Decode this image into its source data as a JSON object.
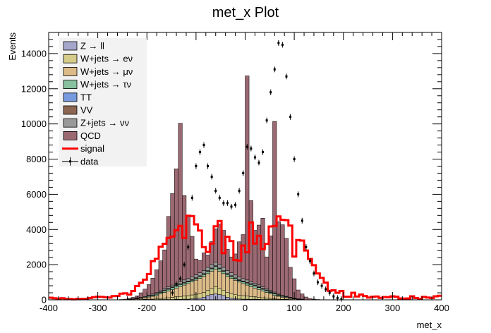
{
  "chart_data": {
    "type": "histogram",
    "title": "met_x Plot",
    "xlabel": "met_x",
    "ylabel": "Events",
    "xlim": [
      -400,
      400
    ],
    "ylim": [
      0,
      15200
    ],
    "x_ticks": [
      "-400",
      "-300",
      "-200",
      "-100",
      "0",
      "100",
      "200",
      "300",
      "400"
    ],
    "y_ticks": [
      "0",
      "2000",
      "4000",
      "6000",
      "8000",
      "10000",
      "12000",
      "14000"
    ],
    "legend": {
      "placement": "top-left",
      "entries": [
        {
          "label": "Z → ll",
          "color": "#a6a6cc",
          "style": "fill"
        },
        {
          "label": "W+jets → eν",
          "color": "#d4cc88",
          "style": "fill"
        },
        {
          "label": "W+jets → μν",
          "color": "#dcbb88",
          "style": "fill"
        },
        {
          "label": "W+jets → τν",
          "color": "#88c0a0",
          "style": "fill"
        },
        {
          "label": "TT",
          "color": "#7799dd",
          "style": "fill"
        },
        {
          "label": "VV",
          "color": "#8c6652",
          "style": "fill"
        },
        {
          "label": "Z+jets → νν",
          "color": "#999999",
          "style": "fill"
        },
        {
          "label": "QCD",
          "color": "#9b6972",
          "style": "fill"
        },
        {
          "label": "signal",
          "color": "#ff0000",
          "style": "line"
        },
        {
          "label": "data",
          "color": "#000000",
          "style": "marker"
        }
      ]
    },
    "bins": {
      "start": -400,
      "end": 400,
      "width": 8
    },
    "stack_order": [
      "Z → ll",
      "W+jets → eν",
      "W+jets → μν",
      "W+jets → τν",
      "TT",
      "VV",
      "Z+jets → νν",
      "QCD"
    ],
    "stack_colors": [
      "#a6a6cc",
      "#d4cc88",
      "#dcbb88",
      "#88c0a0",
      "#7799dd",
      "#8c6652",
      "#999999",
      "#9b6972"
    ],
    "series": [
      {
        "name": "Z → ll",
        "values": [
          0,
          0,
          0,
          0,
          0,
          0,
          0,
          0,
          0,
          0,
          0,
          0,
          0,
          0,
          0,
          0,
          0,
          0,
          0,
          0,
          0,
          0,
          0,
          0,
          10,
          10,
          10,
          10,
          20,
          20,
          20,
          20,
          30,
          30,
          40,
          40,
          60,
          80,
          100,
          150,
          250,
          300,
          350,
          300,
          250,
          150,
          100,
          70,
          50,
          40,
          40,
          30,
          30,
          30,
          20,
          20,
          20,
          20,
          10,
          10,
          10,
          10,
          0,
          0,
          0,
          0,
          0,
          0,
          0,
          0,
          0,
          0,
          0,
          0,
          0,
          0,
          0,
          0,
          0,
          0,
          0,
          0,
          0,
          0,
          0,
          0,
          0,
          0,
          0,
          0,
          0,
          0,
          0,
          0,
          0,
          0,
          0,
          0,
          0,
          0
        ]
      },
      {
        "name": "W+jets → eν",
        "values": [
          0,
          0,
          0,
          0,
          0,
          0,
          0,
          0,
          0,
          0,
          0,
          0,
          0,
          0,
          0,
          0,
          0,
          0,
          0,
          0,
          0,
          10,
          10,
          20,
          20,
          30,
          30,
          40,
          60,
          80,
          100,
          120,
          140,
          160,
          180,
          200,
          220,
          240,
          260,
          280,
          300,
          350,
          400,
          350,
          300,
          280,
          260,
          240,
          220,
          200,
          180,
          160,
          140,
          120,
          100,
          80,
          60,
          40,
          30,
          20,
          20,
          10,
          10,
          0,
          0,
          0,
          0,
          0,
          0,
          0,
          0,
          0,
          0,
          0,
          0,
          0,
          0,
          0,
          0,
          0,
          0,
          0,
          0,
          0,
          0,
          0,
          0,
          0,
          0,
          0,
          0,
          0,
          0,
          0,
          0,
          0,
          0,
          0,
          0,
          0
        ]
      },
      {
        "name": "W+jets → μν",
        "values": [
          0,
          0,
          0,
          0,
          0,
          0,
          0,
          0,
          0,
          0,
          0,
          0,
          0,
          0,
          0,
          0,
          0,
          0,
          0,
          10,
          20,
          30,
          40,
          60,
          80,
          120,
          160,
          200,
          260,
          320,
          380,
          440,
          500,
          560,
          620,
          680,
          740,
          800,
          860,
          900,
          940,
          980,
          1000,
          980,
          940,
          900,
          860,
          800,
          740,
          680,
          620,
          560,
          500,
          440,
          380,
          320,
          260,
          200,
          160,
          120,
          80,
          60,
          40,
          30,
          20,
          10,
          0,
          0,
          0,
          0,
          0,
          0,
          0,
          0,
          0,
          0,
          0,
          0,
          0,
          0,
          0,
          0,
          0,
          0,
          0,
          0,
          0,
          0,
          0,
          0,
          0,
          0,
          0,
          0,
          0,
          0,
          0,
          0,
          0,
          0
        ]
      },
      {
        "name": "W+jets → τν",
        "values": [
          0,
          0,
          0,
          0,
          0,
          0,
          0,
          0,
          0,
          0,
          0,
          0,
          0,
          0,
          0,
          0,
          0,
          0,
          0,
          0,
          10,
          10,
          20,
          30,
          40,
          50,
          60,
          70,
          80,
          90,
          100,
          110,
          120,
          120,
          110,
          100,
          90,
          90,
          100,
          110,
          120,
          130,
          140,
          130,
          120,
          110,
          100,
          90,
          90,
          100,
          110,
          120,
          120,
          110,
          100,
          90,
          80,
          70,
          60,
          50,
          40,
          30,
          20,
          10,
          10,
          0,
          0,
          0,
          0,
          0,
          0,
          0,
          0,
          0,
          0,
          0,
          0,
          0,
          0,
          0,
          0,
          0,
          0,
          0,
          0,
          0,
          0,
          0,
          0,
          0,
          0,
          0,
          0,
          0,
          0,
          0,
          0,
          0,
          0,
          0
        ]
      },
      {
        "name": "TT",
        "values": [
          0,
          0,
          0,
          0,
          0,
          0,
          0,
          0,
          0,
          0,
          0,
          0,
          0,
          0,
          0,
          0,
          0,
          0,
          0,
          0,
          0,
          0,
          0,
          0,
          0,
          0,
          0,
          0,
          0,
          10,
          10,
          10,
          10,
          10,
          10,
          10,
          10,
          10,
          10,
          10,
          10,
          10,
          10,
          10,
          10,
          10,
          10,
          10,
          10,
          10,
          10,
          10,
          10,
          10,
          10,
          10,
          10,
          10,
          10,
          0,
          0,
          0,
          0,
          0,
          0,
          0,
          0,
          0,
          0,
          0,
          0,
          0,
          0,
          0,
          0,
          0,
          0,
          0,
          0,
          0,
          0,
          0,
          0,
          0,
          0,
          0,
          0,
          0,
          0,
          0,
          0,
          0,
          0,
          0,
          0,
          0,
          0,
          0,
          0,
          0
        ]
      },
      {
        "name": "VV",
        "values": [
          0,
          0,
          0,
          0,
          0,
          0,
          0,
          0,
          0,
          0,
          0,
          0,
          0,
          0,
          0,
          0,
          0,
          0,
          0,
          0,
          0,
          0,
          0,
          10,
          10,
          20,
          20,
          30,
          30,
          40,
          40,
          40,
          40,
          40,
          40,
          40,
          40,
          40,
          40,
          40,
          40,
          40,
          40,
          40,
          40,
          40,
          40,
          40,
          40,
          40,
          40,
          40,
          40,
          40,
          40,
          40,
          40,
          40,
          30,
          30,
          20,
          20,
          10,
          10,
          0,
          0,
          0,
          0,
          0,
          0,
          0,
          0,
          0,
          0,
          0,
          0,
          0,
          0,
          0,
          0,
          0,
          0,
          0,
          0,
          0,
          0,
          0,
          0,
          0,
          0,
          0,
          0,
          0,
          0,
          0,
          0,
          0,
          0,
          0,
          0
        ]
      },
      {
        "name": "Z+jets → νν",
        "values": [
          0,
          0,
          0,
          0,
          0,
          0,
          0,
          0,
          0,
          0,
          0,
          0,
          0,
          0,
          0,
          0,
          0,
          0,
          0,
          0,
          10,
          10,
          20,
          20,
          30,
          40,
          50,
          60,
          70,
          80,
          90,
          100,
          110,
          120,
          130,
          140,
          150,
          160,
          170,
          180,
          190,
          200,
          200,
          200,
          190,
          180,
          170,
          160,
          150,
          140,
          130,
          120,
          110,
          100,
          90,
          80,
          70,
          60,
          50,
          40,
          30,
          20,
          20,
          10,
          10,
          0,
          0,
          0,
          0,
          0,
          0,
          0,
          0,
          0,
          0,
          0,
          0,
          0,
          0,
          0,
          0,
          0,
          0,
          0,
          0,
          0,
          0,
          0,
          0,
          0,
          0,
          0,
          0,
          0,
          0,
          0,
          0,
          0,
          0,
          0
        ]
      },
      {
        "name": "QCD",
        "values": [
          0,
          0,
          0,
          0,
          0,
          0,
          0,
          0,
          0,
          0,
          0,
          0,
          0,
          0,
          0,
          0,
          0,
          0,
          20,
          30,
          50,
          80,
          140,
          260,
          420,
          600,
          900,
          1300,
          1700,
          2200,
          4000,
          5200,
          6500,
          9000,
          4800,
          3600,
          2300,
          900,
          700,
          1000,
          700,
          1300,
          1900,
          2300,
          2100,
          1200,
          900,
          1200,
          2000,
          2500,
          11600,
          4600,
          3000,
          3400,
          3900,
          1800,
          3100,
          9700,
          4100,
          4000,
          3300,
          1700,
          1100,
          500,
          300,
          150,
          80,
          40,
          20,
          10,
          0,
          0,
          0,
          0,
          0,
          0,
          0,
          0,
          0,
          0,
          0,
          0,
          0,
          0,
          0,
          0,
          0,
          0,
          0,
          0,
          0,
          0,
          0,
          0,
          0,
          0,
          0,
          0,
          0,
          0
        ]
      },
      {
        "name": "signal",
        "values": [
          120,
          90,
          60,
          90,
          50,
          50,
          30,
          60,
          60,
          60,
          100,
          150,
          180,
          170,
          150,
          130,
          210,
          220,
          350,
          370,
          300,
          500,
          780,
          970,
          1150,
          1470,
          2200,
          2330,
          3020,
          3190,
          3520,
          3600,
          3960,
          4200,
          3520,
          4780,
          4760,
          4290,
          3940,
          3000,
          2720,
          3200,
          4180,
          4480,
          2650,
          3590,
          3340,
          2260,
          2230,
          3090,
          2700,
          4400,
          3200,
          3640,
          2890,
          3180,
          4170,
          4200,
          4740,
          4550,
          4530,
          4220,
          2460,
          3400,
          3370,
          2800,
          2320,
          1970,
          1500,
          1250,
          980,
          510,
          540,
          400,
          500,
          180,
          180,
          400,
          190,
          300,
          220,
          130,
          180,
          190,
          110,
          160,
          150,
          200,
          180,
          80,
          70,
          80,
          200,
          100,
          50,
          170,
          130,
          100,
          200,
          230
        ]
      },
      {
        "name": "data",
        "type": "points",
        "x": [
          -148,
          -140,
          -132,
          -124,
          -116,
          -108,
          -100,
          -92,
          -84,
          -76,
          -68,
          -60,
          -52,
          -44,
          -36,
          -28,
          -20,
          -12,
          -4,
          4,
          12,
          20,
          28,
          36,
          44,
          52,
          60,
          68,
          76,
          84,
          92,
          100,
          108,
          116,
          124,
          132,
          140,
          148,
          156,
          164,
          172,
          180,
          188,
          196
        ],
        "values": [
          400,
          900,
          1200,
          2000,
          3000,
          5800,
          7600,
          8400,
          8800,
          7600,
          7000,
          6200,
          5800,
          5500,
          5500,
          5300,
          5400,
          6200,
          7200,
          8700,
          8600,
          8100,
          7800,
          8400,
          10200,
          11800,
          13100,
          14600,
          14500,
          12700,
          10400,
          8000,
          6000,
          4500,
          3000,
          2200,
          1500,
          1000,
          800,
          600,
          400,
          200,
          100,
          50
        ]
      }
    ]
  }
}
